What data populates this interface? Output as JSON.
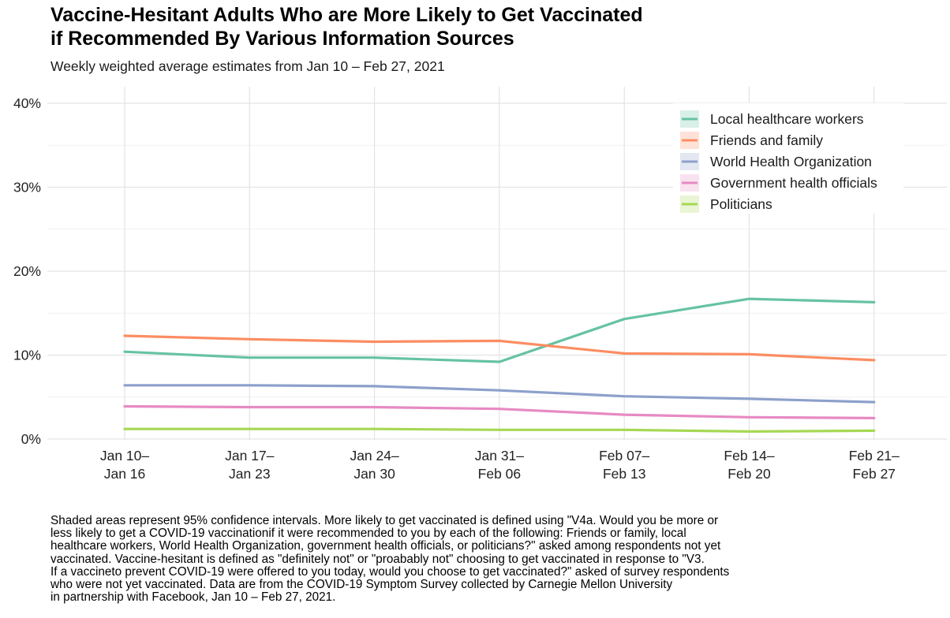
{
  "title_lines": [
    "Vaccine-Hesitant Adults Who are More Likely to Get Vaccinated",
    "if Recommended By Various Information Sources"
  ],
  "subtitle": "Weekly weighted average estimates from Jan 10 – Feb 27, 2021",
  "caption_lines": [
    "Shaded areas represent 95% confidence intervals. More likely to get vaccinated is defined using \"V4a. Would you be more or",
    "less likely to get a COVID-19 vaccinationif it were recommended to you by each of the following: Friends or family, local",
    "healthcare workers, World Health Organization, government health officials, or politicians?\" asked among respondents not yet",
    "vaccinated. Vaccine-hesitant is defined as \"definitely not\" or \"proabably not\" choosing to get vaccinated in response to \"V3.",
    "If a vaccineto prevent COVID-19 were offered to you today, would you choose to get vaccinated?\" asked of survey respondents",
    "who were not yet vaccinated. Data are from the COVID-19 Symptom Survey collected by Carnegie Mellon University",
    "in partnership with Facebook, Jan 10 – Feb 27, 2021."
  ],
  "chart_data": {
    "type": "line",
    "categories": [
      [
        "Jan 10–",
        "Jan 16"
      ],
      [
        "Jan 17–",
        "Jan 23"
      ],
      [
        "Jan 24–",
        "Jan 30"
      ],
      [
        "Jan 31–",
        "Feb 06"
      ],
      [
        "Feb 07–",
        "Feb 13"
      ],
      [
        "Feb 14–",
        "Feb 20"
      ],
      [
        "Feb 21–",
        "Feb 27"
      ]
    ],
    "ylim": [
      0,
      40
    ],
    "yticks": [
      0,
      10,
      20,
      30,
      40
    ],
    "ytick_labels": [
      "0%",
      "10%",
      "20%",
      "30%",
      "40%"
    ],
    "grid": true,
    "legend_position": "top-right",
    "series": [
      {
        "name": "Local healthcare workers",
        "color": "#66c2a5",
        "values": [
          10.4,
          9.7,
          9.7,
          9.2,
          14.3,
          16.7,
          16.3
        ]
      },
      {
        "name": "Friends and family",
        "color": "#fc8d62",
        "values": [
          12.3,
          11.9,
          11.6,
          11.7,
          10.2,
          10.1,
          9.4
        ]
      },
      {
        "name": "World Health Organization",
        "color": "#8da0cb",
        "values": [
          6.4,
          6.4,
          6.3,
          5.8,
          5.1,
          4.8,
          4.4
        ]
      },
      {
        "name": "Government health officials",
        "color": "#e78ac3",
        "values": [
          3.9,
          3.8,
          3.8,
          3.6,
          2.9,
          2.6,
          2.5
        ]
      },
      {
        "name": "Politicians",
        "color": "#a6d854",
        "values": [
          1.2,
          1.2,
          1.2,
          1.1,
          1.1,
          0.9,
          1.0
        ]
      }
    ]
  }
}
